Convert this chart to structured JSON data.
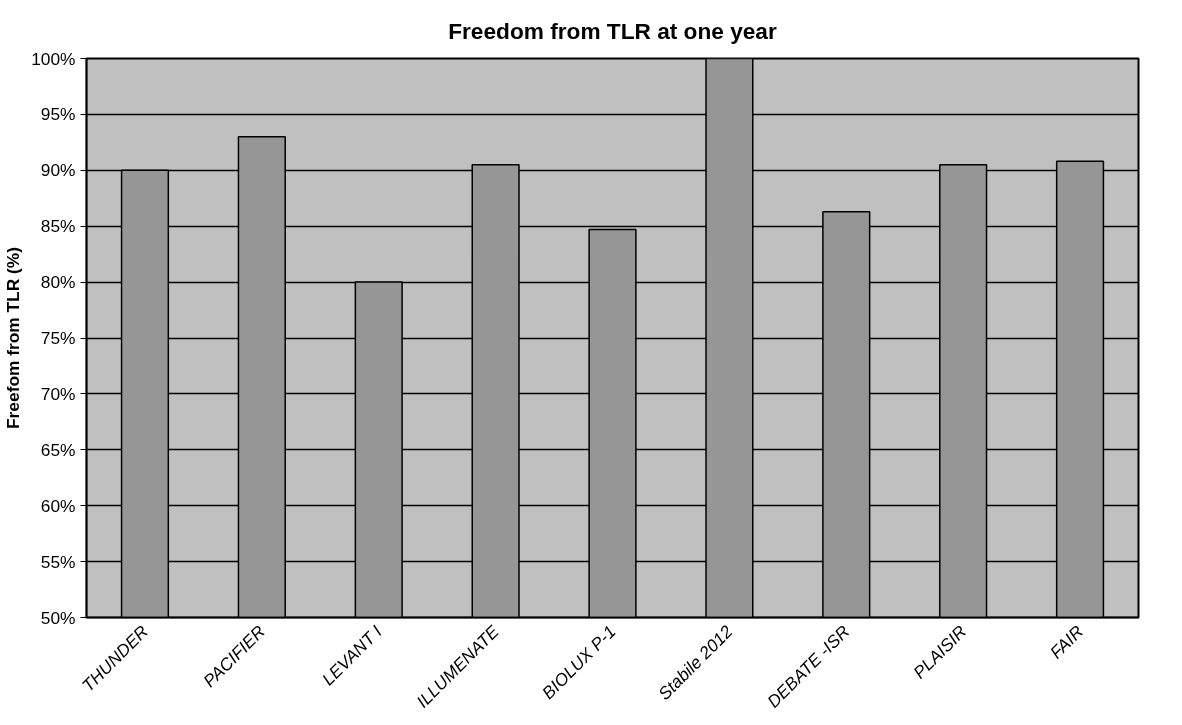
{
  "chart_data": {
    "type": "bar",
    "title": "Freedom from TLR at one year",
    "ylabel": "Freefom from TLR (%)",
    "categories": [
      "THUNDER",
      "PACIFIER",
      "LEVANT I",
      "ILLUMENATE",
      "BIOLUX P-1",
      "Stabile 2012",
      "DEBATE -ISR",
      "PLAISIR",
      "FAIR"
    ],
    "values": [
      90,
      93,
      80,
      90.5,
      84.7,
      100,
      86.3,
      90.5,
      90.8
    ],
    "color": "#969696",
    "ylim": [
      50,
      100
    ],
    "yticks": [
      {
        "value": 50,
        "label": "50%"
      },
      {
        "value": 55,
        "label": "55%"
      },
      {
        "value": 60,
        "label": "60%"
      },
      {
        "value": 65,
        "label": "65%"
      },
      {
        "value": 70,
        "label": "70%"
      },
      {
        "value": 75,
        "label": "75%"
      },
      {
        "value": 80,
        "label": "80%"
      },
      {
        "value": 85,
        "label": "85%"
      },
      {
        "value": 90,
        "label": "90%"
      },
      {
        "value": 95,
        "label": "95%"
      },
      {
        "value": 100,
        "label": "100%"
      }
    ],
    "grid": "y"
  }
}
